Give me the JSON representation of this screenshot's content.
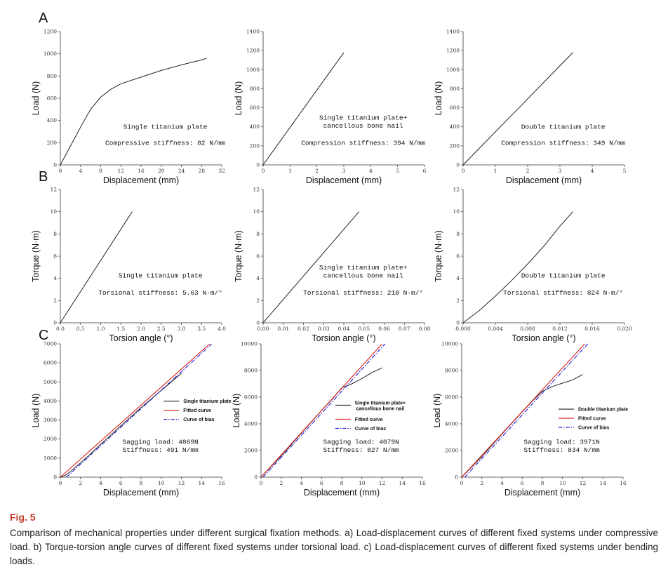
{
  "panels": {
    "A": "A",
    "B": "B",
    "C": "C"
  },
  "figure": {
    "label": "Fig. 5",
    "caption": "Comparison of mechanical properties under different surgical fixation methods. a) Load-displacement curves of different fixed systems under compressive load. b) Torque-torsion angle curves of different fixed systems under torsional load. c) Load-displacement curves of different fixed systems under bending loads."
  },
  "colors": {
    "line": "#222222",
    "fitted": "#e0201b",
    "bias": "#1b1bd6",
    "caption_label": "#c0392b"
  },
  "chart_data": [
    {
      "type": "line",
      "panel": "A",
      "title": "",
      "xlabel": "Displacement (mm)",
      "ylabel": "Load (N)",
      "xlim": [
        0,
        32
      ],
      "ylim": [
        0,
        1200
      ],
      "xticks": [
        "0",
        "4",
        "8",
        "12",
        "16",
        "20",
        "24",
        "28",
        "32"
      ],
      "yticks": [
        "0",
        "200",
        "400",
        "600",
        "800",
        "1000",
        "1200"
      ],
      "series": [
        {
          "name": "curve",
          "x": [
            0,
            2,
            4,
            6,
            8,
            10,
            12,
            16,
            20,
            24,
            28,
            29
          ],
          "y": [
            0,
            170,
            340,
            500,
            610,
            680,
            730,
            790,
            850,
            900,
            945,
            960
          ]
        }
      ],
      "annotations": [
        "Single titanium plate",
        "Compressive stiffness: 82 N/mm"
      ]
    },
    {
      "type": "line",
      "panel": "A",
      "title": "",
      "xlabel": "Displacement (mm)",
      "ylabel": "Load (N)",
      "xlim": [
        0,
        6
      ],
      "ylim": [
        0,
        1400
      ],
      "xticks": [
        "0",
        "1",
        "2",
        "3",
        "4",
        "5",
        "6"
      ],
      "yticks": [
        "0",
        "200",
        "400",
        "600",
        "800",
        "1000",
        "1200",
        "1400"
      ],
      "series": [
        {
          "name": "curve",
          "x": [
            0,
            3
          ],
          "y": [
            0,
            1180
          ]
        }
      ],
      "annotations": [
        "Single titanium plate+",
        "cancellous bone nail",
        "Compression stiffness: 394 N/mm"
      ]
    },
    {
      "type": "line",
      "panel": "A",
      "title": "",
      "xlabel": "Displacement (mm)",
      "ylabel": "Load (N)",
      "xlim": [
        0,
        5
      ],
      "ylim": [
        0,
        1400
      ],
      "xticks": [
        "0",
        "1",
        "2",
        "3",
        "4",
        "5"
      ],
      "yticks": [
        "0",
        "200",
        "400",
        "600",
        "800",
        "1000",
        "1200",
        "1400"
      ],
      "series": [
        {
          "name": "curve",
          "x": [
            0,
            3.4
          ],
          "y": [
            0,
            1180
          ]
        }
      ],
      "annotations": [
        "Double titanium plate",
        "Compression stiffness: 349 N/mm"
      ]
    },
    {
      "type": "line",
      "panel": "B",
      "title": "",
      "xlabel": "Torsion angle (°)",
      "ylabel": "Torque (N·m)",
      "xlim": [
        0,
        4
      ],
      "ylim": [
        0,
        12
      ],
      "xticks": [
        "0.0",
        "0.5",
        "1.0",
        "1.5",
        "2.0",
        "2.5",
        "3.0",
        "3.5",
        "4.0"
      ],
      "yticks": [
        "0",
        "2",
        "4",
        "6",
        "8",
        "10",
        "12"
      ],
      "series": [
        {
          "name": "curve",
          "x": [
            0,
            1.78
          ],
          "y": [
            0,
            10
          ]
        }
      ],
      "annotations": [
        "Single titanium plate",
        "Torsional stiffness: 5.63 N·m/°"
      ]
    },
    {
      "type": "line",
      "panel": "B",
      "title": "",
      "xlabel": "Torsion angle (°)",
      "ylabel": "Torque (N·m)",
      "xlim": [
        0,
        0.08
      ],
      "ylim": [
        0,
        12
      ],
      "xticks": [
        "0.00",
        "0.01",
        "0.02",
        "0.03",
        "0.04",
        "0.05",
        "0.06",
        "0.07",
        "0.08"
      ],
      "yticks": [
        "0",
        "2",
        "4",
        "6",
        "8",
        "10",
        "12"
      ],
      "series": [
        {
          "name": "curve",
          "x": [
            0,
            0.0475
          ],
          "y": [
            0,
            10
          ]
        }
      ],
      "annotations": [
        "Single titanium plate+",
        "cancellous bone nail",
        "Torsional stiffness: 210 N·m/°"
      ]
    },
    {
      "type": "line",
      "panel": "B",
      "title": "",
      "xlabel": "Torsion angle (°)",
      "ylabel": "Torque (N·m)",
      "xlim": [
        0,
        0.02
      ],
      "ylim": [
        0,
        12
      ],
      "xticks": [
        "0.000",
        "0.004",
        "0.008",
        "0.012",
        "0.016",
        "0.020"
      ],
      "yticks": [
        "0",
        "2",
        "4",
        "6",
        "8",
        "10",
        "12"
      ],
      "series": [
        {
          "name": "curve",
          "x": [
            0,
            0.002,
            0.004,
            0.006,
            0.008,
            0.01,
            0.012,
            0.0136
          ],
          "y": [
            0,
            1.1,
            2.4,
            3.8,
            5.3,
            6.9,
            8.7,
            10
          ]
        }
      ],
      "annotations": [
        "Double titanium plate",
        "Torsional stiffness: 824 N·m/°"
      ]
    },
    {
      "type": "line",
      "panel": "C",
      "title": "",
      "xlabel": "Displacement (mm)",
      "ylabel": "Load (N)",
      "xlim": [
        0,
        16
      ],
      "ylim": [
        0,
        7000
      ],
      "xticks": [
        "0",
        "2",
        "4",
        "6",
        "8",
        "10",
        "12",
        "14",
        "16"
      ],
      "yticks": [
        "0",
        "1000",
        "2000",
        "3000",
        "4000",
        "5000",
        "6000",
        "7000"
      ],
      "series": [
        {
          "name": "Single titanium plate",
          "x": [
            0,
            0.5,
            1,
            2,
            4,
            6,
            8,
            10,
            12
          ],
          "y": [
            0,
            100,
            300,
            750,
            1720,
            2700,
            3650,
            4550,
            5450
          ]
        },
        {
          "name": "Fitted curve",
          "x": [
            0,
            14.8
          ],
          "y": [
            0,
            7000
          ]
        },
        {
          "name": "Curve of bias",
          "x": [
            0.6,
            15
          ],
          "y": [
            0,
            6990
          ]
        }
      ],
      "annotations": [
        "Sagging load: 4869N",
        "Stiffness: 491 N/mm"
      ]
    },
    {
      "type": "line",
      "panel": "C",
      "title": "",
      "xlabel": "Displacement (mm)",
      "ylabel": "Load (N)",
      "xlim": [
        0,
        16
      ],
      "ylim": [
        0,
        10000
      ],
      "xticks": [
        "0",
        "2",
        "4",
        "6",
        "8",
        "10",
        "12",
        "14",
        "16"
      ],
      "yticks": [
        "0",
        "2000",
        "4000",
        "6000",
        "8000",
        "10000"
      ],
      "series": [
        {
          "name": "Single titanium plate+ cancellous bone nail",
          "x": [
            0,
            2,
            4,
            6,
            7,
            8,
            9,
            10,
            11,
            12
          ],
          "y": [
            0,
            1600,
            3300,
            5000,
            5800,
            6700,
            7000,
            7400,
            7850,
            8200
          ]
        },
        {
          "name": "Fitted curve",
          "x": [
            0,
            12
          ],
          "y": [
            0,
            10000
          ]
        },
        {
          "name": "Curve of bias",
          "x": [
            0.2,
            12.3
          ],
          "y": [
            0,
            10000
          ]
        }
      ],
      "annotations": [
        "Sagging load: 4079N",
        "Stiffness: 827 N/mm"
      ]
    },
    {
      "type": "line",
      "panel": "C",
      "title": "",
      "xlabel": "Displacement (mm)",
      "ylabel": "Load (N)",
      "xlim": [
        0,
        16
      ],
      "ylim": [
        0,
        10000
      ],
      "xticks": [
        "0",
        "2",
        "4",
        "6",
        "8",
        "10",
        "12",
        "14",
        "16"
      ],
      "yticks": [
        "0",
        "2000",
        "4000",
        "6000",
        "8000",
        "10000"
      ],
      "series": [
        {
          "name": "Double titanium plate",
          "x": [
            0,
            2,
            4,
            6,
            7,
            8,
            9,
            10,
            11,
            12
          ],
          "y": [
            0,
            1550,
            3250,
            4900,
            5700,
            6450,
            6800,
            7050,
            7300,
            7700
          ]
        },
        {
          "name": "Fitted curve",
          "x": [
            0,
            12.2
          ],
          "y": [
            0,
            10000
          ]
        },
        {
          "name": "Curve of bias",
          "x": [
            0.3,
            12.5
          ],
          "y": [
            0,
            10000
          ]
        }
      ],
      "annotations": [
        "Sagging load: 3971N",
        "Stiffness: 834 N/mm"
      ]
    }
  ]
}
